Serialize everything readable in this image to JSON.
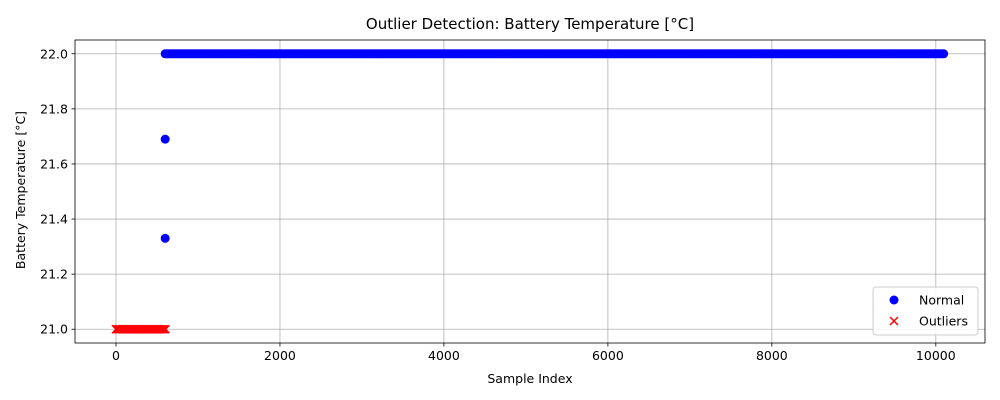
{
  "chart_data": {
    "type": "scatter",
    "title": "Outlier Detection: Battery Temperature [°C]",
    "xlabel": "Sample Index",
    "ylabel": "Battery Temperature [°C]",
    "xlim": [
      -500,
      10600
    ],
    "ylim": [
      20.95,
      22.05
    ],
    "xticks": [
      0,
      2000,
      4000,
      6000,
      8000,
      10000
    ],
    "xtick_labels": [
      "0",
      "2000",
      "4000",
      "6000",
      "8000",
      "10000"
    ],
    "yticks": [
      21.0,
      21.2,
      21.4,
      21.6,
      21.8,
      22.0
    ],
    "ytick_labels": [
      "21.0",
      "21.2",
      "21.4",
      "21.6",
      "21.8",
      "22.0"
    ],
    "grid": true,
    "legend_position": "lower-right",
    "series": [
      {
        "name": "Normal",
        "marker": "circle",
        "color": "#0000ff",
        "points": [
          [
            600,
            21.33
          ],
          [
            600,
            21.69
          ]
        ],
        "dense_segments": [
          {
            "x_start": 600,
            "x_end": 10100,
            "y": 22.0
          }
        ]
      },
      {
        "name": "Outliers",
        "marker": "x",
        "color": "#ff0000",
        "points": [],
        "dense_segments": [
          {
            "x_start": 0,
            "x_end": 610,
            "y": 21.0
          }
        ]
      }
    ]
  }
}
